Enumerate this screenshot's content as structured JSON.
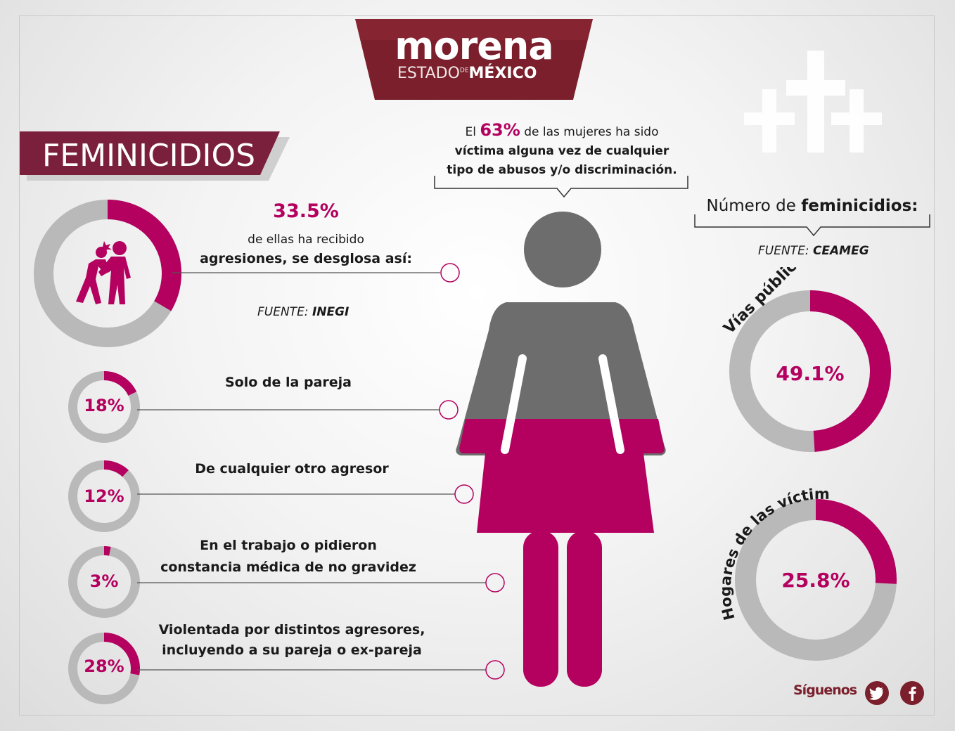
{
  "logo": {
    "name": "morena",
    "sub_left": "ESTADO",
    "sub_de": "DE",
    "sub_right": "MÉXICO"
  },
  "title": "FEMINICIDIOS",
  "lead": {
    "pre": "El ",
    "percent": "63%",
    "post": " de las mujeres ha sido",
    "line2": "víctima alguna vez de cualquier",
    "line3": "tipo de abusos y/o discriminación."
  },
  "aggression": {
    "percent": "33.5%",
    "line1": "de ellas ha recibido",
    "line2": "agresiones, se desglosa así:",
    "source_label": "FUENTE: ",
    "source_name": "INEGI",
    "fraction": 0.335
  },
  "breakdown": [
    {
      "value": "18%",
      "fraction": 0.18,
      "label_lines": [
        "Solo de la pareja"
      ]
    },
    {
      "value": "12%",
      "fraction": 0.12,
      "label_lines": [
        "De cualquier otro agresor"
      ]
    },
    {
      "value": "3%",
      "fraction": 0.03,
      "label_lines": [
        "En el trabajo o pidieron",
        "constancia médica de no gravidez"
      ]
    },
    {
      "value": "28%",
      "fraction": 0.28,
      "label_lines": [
        "Violentada por distintos agresores,",
        "incluyendo a su pareja o ex-pareja"
      ]
    }
  ],
  "feminicides": {
    "title_pre": "Número de ",
    "title_bold": "feminicidios:",
    "source_label": "FUENTE: ",
    "source_name": "CEAMEG",
    "items": [
      {
        "label": "Vías públicas",
        "value": "49.1%",
        "fraction": 0.491
      },
      {
        "label": "Hogares de las víctimas",
        "value": "25.8%",
        "fraction": 0.258
      }
    ]
  },
  "footer": {
    "follow": "Síguenos",
    "icons": [
      "twitter-icon",
      "facebook-icon"
    ]
  },
  "colors": {
    "accent": "#b4005f",
    "brand": "#7a1f2b",
    "track": "#b9b9b9",
    "figure_gray": "#6d6d6d"
  }
}
